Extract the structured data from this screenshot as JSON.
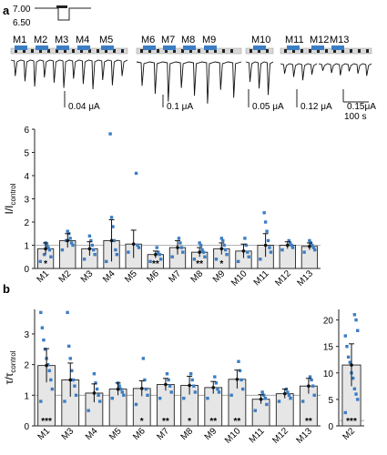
{
  "figure": {
    "panel_a_label": "a",
    "panel_b_label": "b",
    "ph_high": "7.00",
    "ph_low": "6.50",
    "group_labels": [
      "M1",
      "M2",
      "M3",
      "M4",
      "M5",
      "M6",
      "M7",
      "M8",
      "M9",
      "M10",
      "M11",
      "M12",
      "M13"
    ],
    "scale_bars": [
      "0.04 μA",
      "0.1 μA",
      "0.05 μA",
      "0.12 μA",
      "0.15μA"
    ],
    "time_scale": "100 s",
    "colors": {
      "dots": "#3b7dc4",
      "bar_fill": "#e6e6e6",
      "bar_edge": "#222222",
      "pulse_blue": "#3b7dc4",
      "pulse_dark": "#222222",
      "trace": "#111111"
    }
  },
  "chart_data": [
    {
      "type": "bar",
      "panel": "a",
      "ylabel": "I/I",
      "ylabel_sub": "control",
      "ylim": [
        0,
        6
      ],
      "yticks": [
        0,
        1,
        2,
        3,
        4,
        5,
        6
      ],
      "reference_line": 1,
      "categories": [
        "M1",
        "M2",
        "M3",
        "M4",
        "M5",
        "M6",
        "M7",
        "M8",
        "M9",
        "M10",
        "M11",
        "M12",
        "M13"
      ],
      "values": [
        0.85,
        1.2,
        0.85,
        1.2,
        1.05,
        0.6,
        0.9,
        0.7,
        0.85,
        0.75,
        1.0,
        1.0,
        0.95
      ],
      "errors": [
        0.25,
        0.3,
        0.3,
        0.9,
        0.6,
        0.15,
        0.3,
        0.2,
        0.25,
        0.3,
        0.5,
        0.15,
        0.15
      ],
      "significance": [
        "*",
        "",
        "",
        "",
        "",
        "**",
        "",
        "**",
        "*",
        "",
        "",
        "",
        ""
      ],
      "points": [
        [
          0.3,
          0.5,
          0.8,
          0.9,
          1.0,
          1.1,
          0.6
        ],
        [
          0.8,
          1.0,
          1.1,
          1.3,
          1.5,
          1.6,
          1.2
        ],
        [
          0.4,
          0.6,
          0.8,
          1.0,
          1.2,
          1.4
        ],
        [
          0.3,
          0.6,
          0.8,
          1.2,
          1.8,
          2.2,
          5.8
        ],
        [
          0.7,
          0.9,
          1.0,
          4.1
        ],
        [
          0.3,
          0.4,
          0.6,
          0.7,
          0.9
        ],
        [
          0.5,
          0.7,
          0.9,
          1.1,
          1.3
        ],
        [
          0.4,
          0.5,
          0.7,
          0.8,
          1.0,
          1.1
        ],
        [
          0.4,
          0.6,
          0.8,
          1.0,
          1.2,
          1.3
        ],
        [
          0.3,
          0.5,
          0.7,
          1.0,
          1.3
        ],
        [
          0.4,
          0.7,
          0.9,
          1.2,
          1.6,
          2.0,
          2.4
        ],
        [
          0.8,
          0.9,
          1.0,
          1.1,
          1.2
        ],
        [
          0.7,
          0.8,
          0.9,
          1.0,
          1.1,
          1.2
        ]
      ]
    },
    {
      "type": "bar",
      "panel": "b",
      "ylabel": "τ/τ",
      "ylabel_sub": "control",
      "ylim": [
        0,
        3.8
      ],
      "yticks": [
        0,
        1,
        2,
        3
      ],
      "reference_line": 1,
      "categories": [
        "M1",
        "M3",
        "M4",
        "M5",
        "M6",
        "M7",
        "M8",
        "M9",
        "M10",
        "M11",
        "M12",
        "M13"
      ],
      "values": [
        1.97,
        1.5,
        1.07,
        1.2,
        1.22,
        1.35,
        1.32,
        1.25,
        1.52,
        0.87,
        1.05,
        1.3
      ],
      "errors": [
        0.55,
        0.55,
        0.3,
        0.2,
        0.25,
        0.2,
        0.3,
        0.2,
        0.3,
        0.15,
        0.15,
        0.25
      ],
      "significance": [
        "***",
        "",
        "",
        "",
        "*",
        "**",
        "*",
        "**",
        "**",
        "",
        "",
        "**"
      ],
      "points": [
        [
          0.8,
          1.2,
          1.5,
          1.8,
          2.0,
          2.2,
          2.5,
          2.8,
          3.2,
          3.7
        ],
        [
          0.8,
          1.0,
          1.3,
          1.5,
          1.8,
          2.2,
          2.6,
          3.7
        ],
        [
          0.5,
          0.8,
          1.0,
          1.2,
          1.4,
          1.7
        ],
        [
          0.9,
          1.0,
          1.1,
          1.2,
          1.3,
          1.4
        ],
        [
          0.7,
          1.0,
          1.2,
          1.5,
          2.2
        ],
        [
          0.9,
          1.1,
          1.3,
          1.5,
          1.7
        ],
        [
          0.9,
          1.1,
          1.3,
          1.5,
          1.7
        ],
        [
          0.9,
          1.1,
          1.2,
          1.4,
          1.6
        ],
        [
          1.0,
          1.2,
          1.5,
          1.8,
          2.1
        ],
        [
          0.5,
          0.7,
          0.9,
          1.0,
          1.1
        ],
        [
          0.8,
          0.9,
          1.0,
          1.1,
          1.2
        ],
        [
          0.8,
          1.0,
          1.3,
          1.5,
          1.6
        ]
      ]
    },
    {
      "type": "bar",
      "panel": "b-inset",
      "ylim": [
        0,
        22
      ],
      "yticks": [
        0,
        5,
        10,
        15,
        20
      ],
      "reference_line": 1,
      "categories": [
        "M2"
      ],
      "values": [
        11.5
      ],
      "errors": [
        4.0
      ],
      "significance": [
        "***"
      ],
      "points": [
        [
          2.5,
          5,
          6,
          7,
          9,
          10,
          12,
          13,
          15,
          17,
          18,
          20,
          21
        ]
      ]
    }
  ]
}
